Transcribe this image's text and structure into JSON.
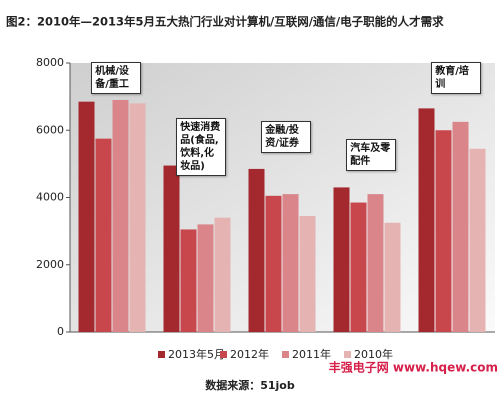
{
  "chart_data": {
    "type": "bar",
    "title": "图2：2010年—2013年5月五大热门行业对计算机/互联网/通信/电子职能的人才需求",
    "categories": [
      "机械/设备/重工",
      "快速消费品(食品,饮料,化妆品)",
      "金融/投资/证券",
      "汽车及零配件",
      "教育/培训"
    ],
    "series": [
      {
        "name": "2013年5月",
        "color": "#a3292e",
        "values": [
          6850,
          4950,
          4850,
          4300,
          6650
        ]
      },
      {
        "name": "2012年",
        "color": "#c8474c",
        "values": [
          5750,
          3050,
          4050,
          3850,
          6000
        ]
      },
      {
        "name": "2011年",
        "color": "#d98589",
        "values": [
          6900,
          3200,
          4100,
          4100,
          6250
        ]
      },
      {
        "name": "2010年",
        "color": "#e6b3b3",
        "values": [
          6800,
          3400,
          3450,
          3250,
          5450
        ]
      }
    ],
    "ylim": [
      0,
      8000
    ],
    "yticks": [
      0,
      2000,
      4000,
      6000,
      8000
    ],
    "grid": false,
    "source": "数据来源：51job",
    "watermark": "丰强电子网 www.hqew.com"
  }
}
